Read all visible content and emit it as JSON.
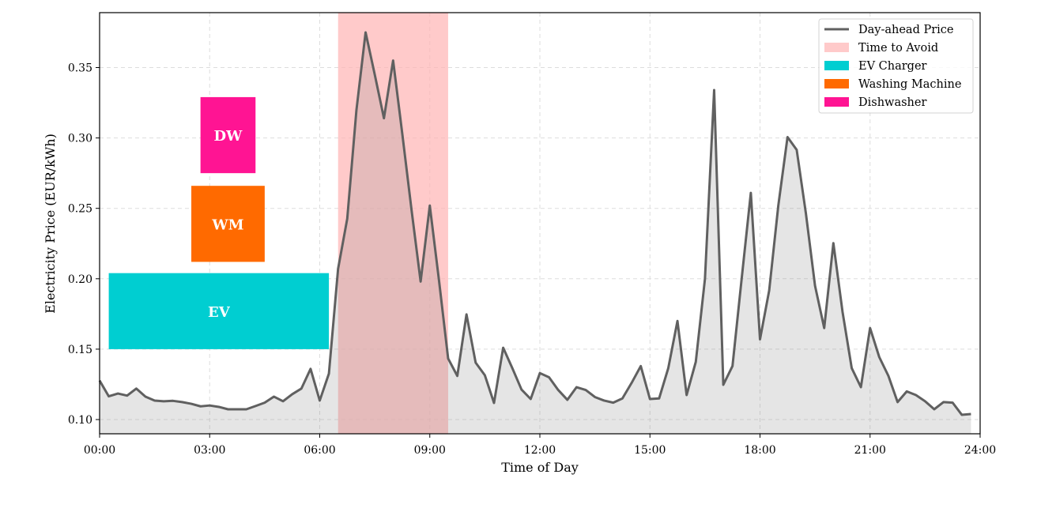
{
  "chart_data": {
    "type": "line",
    "xlabel": "Time of Day",
    "ylabel": "Electricity Price (EUR/kWh)",
    "xlim": [
      0,
      24
    ],
    "ylim": [
      0.0899,
      0.389
    ],
    "grid": true,
    "legend_position": "top-right",
    "x_ticks": [
      0,
      3,
      6,
      9,
      12,
      15,
      18,
      21,
      24
    ],
    "x_tick_labels": [
      "00:00",
      "03:00",
      "06:00",
      "09:00",
      "12:00",
      "15:00",
      "18:00",
      "21:00",
      "24:00"
    ],
    "y_ticks": [
      0.1,
      0.15,
      0.2,
      0.25,
      0.3,
      0.35
    ],
    "y_tick_labels": [
      "0.10",
      "0.15",
      "0.20",
      "0.25",
      "0.30",
      "0.35"
    ],
    "series": [
      {
        "name": "Day-ahead Price",
        "color": "#606060",
        "x_step_hours": 0.25,
        "values": [
          0.1277,
          0.1165,
          0.1185,
          0.117,
          0.122,
          0.1163,
          0.1135,
          0.113,
          0.1133,
          0.1124,
          0.1112,
          0.1094,
          0.11,
          0.109,
          0.1073,
          0.1073,
          0.1073,
          0.1096,
          0.112,
          0.1163,
          0.113,
          0.118,
          0.122,
          0.136,
          0.1135,
          0.1326,
          0.207,
          0.2427,
          0.3197,
          0.375,
          0.345,
          0.314,
          0.355,
          0.303,
          0.2494,
          0.198,
          0.252,
          0.199,
          0.1433,
          0.131,
          0.1747,
          0.1404,
          0.1315,
          0.1118,
          0.151,
          0.1365,
          0.1213,
          0.1146,
          0.133,
          0.13,
          0.121,
          0.114,
          0.123,
          0.121,
          0.116,
          0.1135,
          0.112,
          0.115,
          0.126,
          0.138,
          0.1146,
          0.115,
          0.1365,
          0.17,
          0.1174,
          0.141,
          0.2,
          0.334,
          0.1247,
          0.138,
          0.2,
          0.261,
          0.157,
          0.1916,
          0.2522,
          0.3006,
          0.2916,
          0.2466,
          0.195,
          0.165,
          0.2253,
          0.1764,
          0.1365,
          0.123,
          0.165,
          0.1444,
          0.131,
          0.1124,
          0.12,
          0.1174,
          0.113,
          0.1073,
          0.1124,
          0.112,
          0.1034,
          0.1039
        ]
      }
    ],
    "avoid_window": {
      "name": "Time to Avoid",
      "start": 6.5,
      "end": 9.5,
      "color": "#ffb3b3"
    },
    "appliances": [
      {
        "name": "EV Charger",
        "label": "EV",
        "start": 0.25,
        "end": 6.25,
        "ymin": 0.15,
        "ymax": 0.204,
        "color": "#00ced1"
      },
      {
        "name": "Washing Machine",
        "label": "WM",
        "start": 2.5,
        "end": 4.5,
        "ymin": 0.212,
        "ymax": 0.266,
        "color": "#ff6a00"
      },
      {
        "name": "Dishwasher",
        "label": "DW",
        "start": 2.75,
        "end": 4.25,
        "ymin": 0.275,
        "ymax": 0.329,
        "color": "#ff1493"
      }
    ],
    "legend": [
      "Day-ahead Price",
      "Time to Avoid",
      "EV Charger",
      "Washing Machine",
      "Dishwasher"
    ]
  }
}
